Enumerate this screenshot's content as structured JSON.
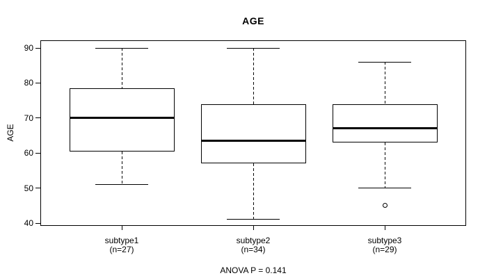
{
  "title": "AGE",
  "colors": {
    "foreground": "#000000",
    "background": "#ffffff"
  },
  "chart_data": {
    "type": "boxplot",
    "title": "AGE",
    "ylabel": "AGE",
    "xlabel": "",
    "yticks": [
      40,
      50,
      60,
      70,
      80,
      90
    ],
    "ylim": [
      38,
      92
    ],
    "grid": false,
    "legend": "none",
    "footnote": "ANOVA P = 0.141",
    "groups": [
      {
        "label": "subtype1",
        "sublabel": "(n=27)",
        "n": 27,
        "whisker_low": 51,
        "q1": 60.5,
        "median": 70,
        "q3": 78.5,
        "whisker_high": 90,
        "outliers": []
      },
      {
        "label": "subtype2",
        "sublabel": "(n=34)",
        "n": 34,
        "whisker_low": 41,
        "q1": 57,
        "median": 63.5,
        "q3": 74,
        "whisker_high": 90,
        "outliers": []
      },
      {
        "label": "subtype3",
        "sublabel": "(n=29)",
        "n": 29,
        "whisker_low": 50,
        "q1": 63,
        "median": 67,
        "q3": 74,
        "whisker_high": 86,
        "outliers": [
          45
        ]
      }
    ]
  }
}
